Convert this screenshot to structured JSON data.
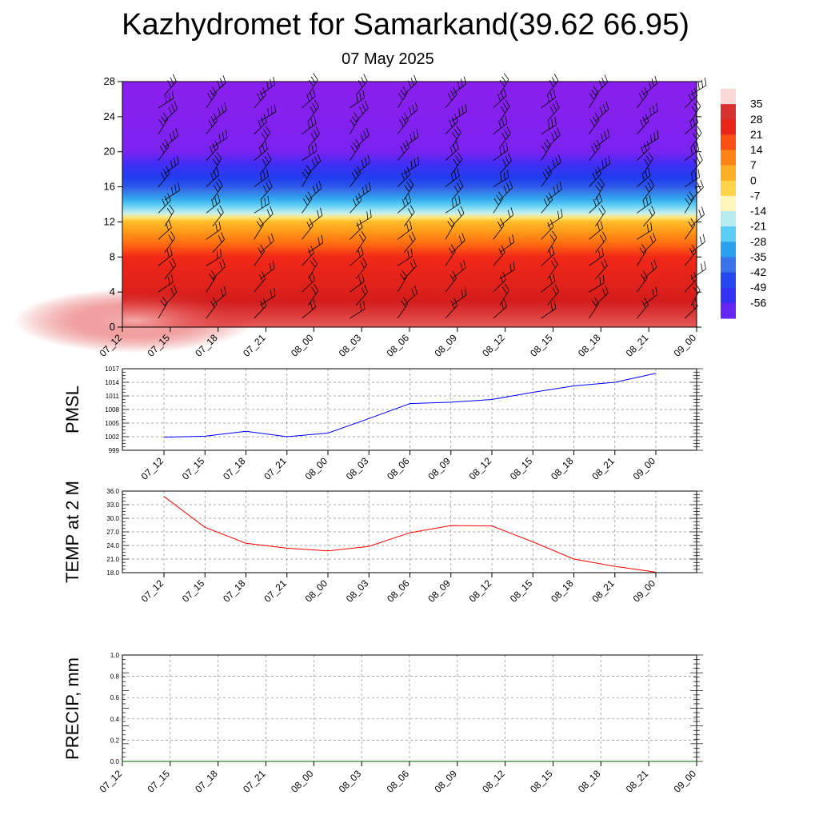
{
  "header": {
    "title": "Kazhydromet for Samarkand(39.62 66.95)",
    "subtitle": "07 May 2025"
  },
  "chart_data": [
    {
      "type": "heatmap",
      "ylim": [
        0,
        28
      ],
      "yticks": [
        0,
        4,
        8,
        12,
        16,
        20,
        24,
        28
      ],
      "categories": [
        "07_12",
        "07_15",
        "07_18",
        "07_21",
        "08_00",
        "08_03",
        "08_06",
        "08_09",
        "08_12",
        "08_15",
        "08_18",
        "08_21",
        "09_00"
      ],
      "colorbar": {
        "labels": [
          "35",
          "28",
          "21",
          "14",
          "7",
          "0",
          "-7",
          "-14",
          "-21",
          "-28",
          "-35",
          "-42",
          "-49",
          "-56"
        ]
      },
      "temperature_profile": {
        "levels": [
          0,
          4,
          8,
          12,
          13,
          16,
          20,
          22,
          24,
          28
        ],
        "values": [
          33,
          26,
          21,
          2,
          -14,
          -38,
          -56,
          -58,
          -60,
          -62
        ]
      },
      "wind_barbs": true
    },
    {
      "type": "line",
      "ylabel": "PMSL",
      "ylim": [
        999,
        1017
      ],
      "yticks": [
        "999",
        "1002",
        "1005",
        "1008",
        "1011",
        "1014",
        "1017"
      ],
      "categories": [
        "07_12",
        "07_15",
        "07_18",
        "07_21",
        "08_00",
        "08_03",
        "08_06",
        "08_09",
        "08_12",
        "08_15",
        "08_18",
        "08_21",
        "09_00"
      ],
      "values": [
        1001.9,
        1002.1,
        1003.2,
        1002.0,
        1002.8,
        1006.0,
        1009.3,
        1009.6,
        1010.2,
        1011.8,
        1013.2,
        1014.0,
        1016.0
      ],
      "color": "#0000ff"
    },
    {
      "type": "line",
      "ylabel": "TEMP at 2 M",
      "ylim": [
        18,
        36
      ],
      "yticks": [
        "18.0",
        "21.0",
        "24.0",
        "27.0",
        "30.0",
        "33.0",
        "36.0"
      ],
      "categories": [
        "07_12",
        "07_15",
        "07_18",
        "07_21",
        "08_00",
        "08_03",
        "08_06",
        "08_09",
        "08_12",
        "08_15",
        "08_18",
        "08_21",
        "09_00"
      ],
      "values": [
        34.8,
        28.0,
        24.5,
        23.4,
        22.8,
        23.8,
        26.8,
        28.4,
        28.3,
        24.8,
        21.0,
        19.4,
        18.1
      ],
      "color": "#ff0000"
    },
    {
      "type": "line",
      "ylabel": "PRECIP, mm",
      "ylim": [
        0,
        1
      ],
      "yticks": [
        "0.0",
        "0.2",
        "0.4",
        "0.6",
        "0.8",
        "1.0"
      ],
      "categories": [
        "07_12",
        "07_15",
        "07_18",
        "07_21",
        "08_00",
        "08_03",
        "08_06",
        "08_09",
        "08_12",
        "08_15",
        "08_18",
        "08_21",
        "09_00"
      ],
      "values": [
        0,
        0,
        0,
        0,
        0,
        0,
        0,
        0,
        0,
        0,
        0,
        0,
        0
      ],
      "color": "#006400"
    }
  ]
}
